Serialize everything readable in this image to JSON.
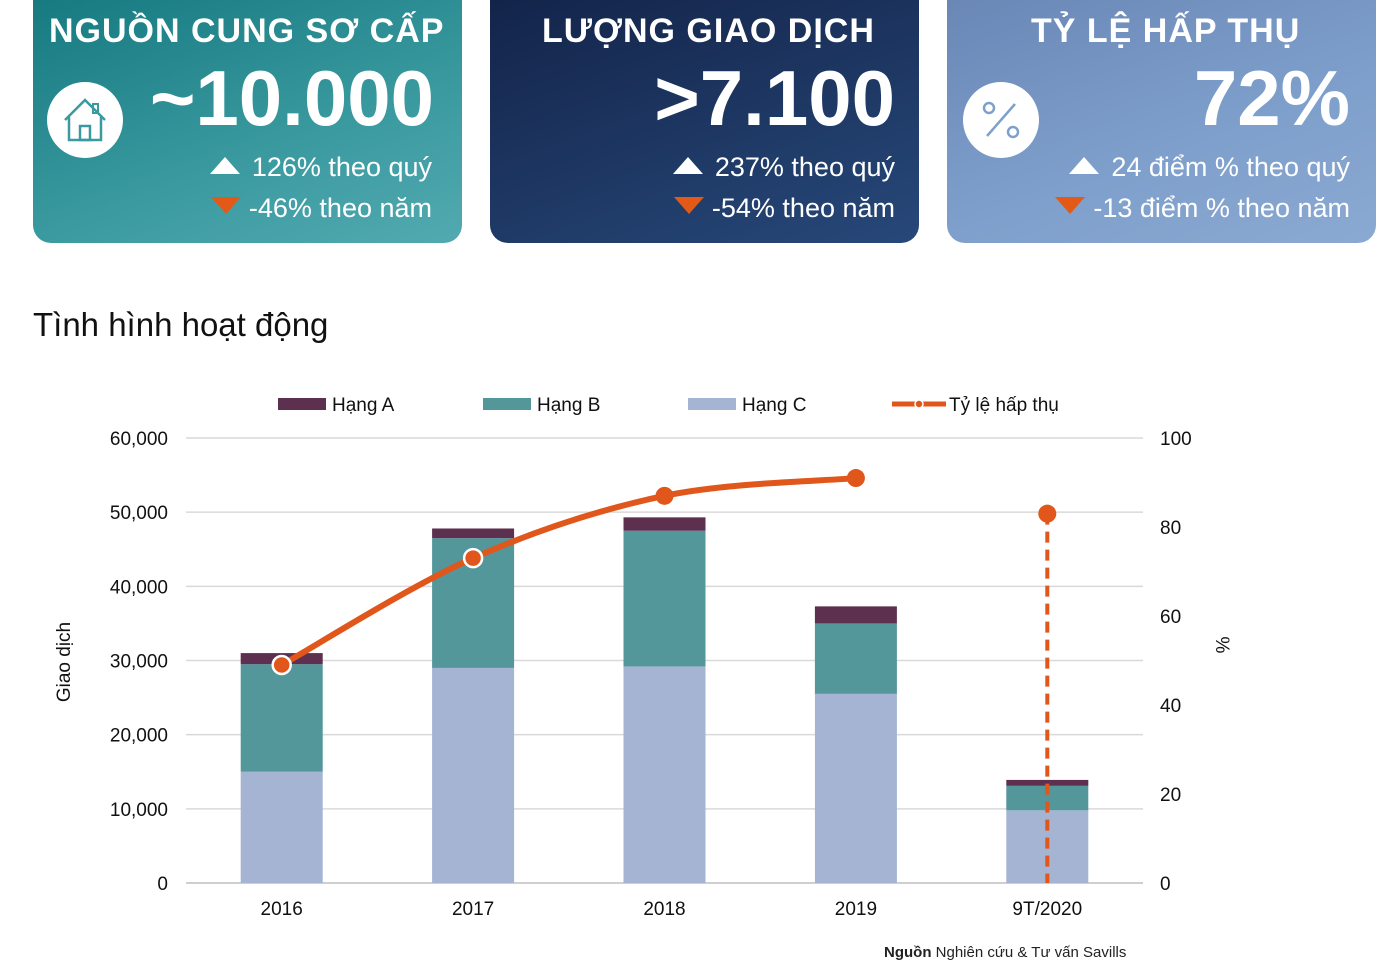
{
  "cards": [
    {
      "title": "NGUỒN CUNG SƠ CẤP",
      "value": "~10.000",
      "row1": "126% theo quý",
      "row2": "-46% theo năm",
      "icon": "house-icon"
    },
    {
      "title": "LƯỢNG GIAO DỊCH",
      "value": ">7.100",
      "row1": "237% theo quý",
      "row2": "-54% theo năm"
    },
    {
      "title": "TỶ LỆ HẤP THỤ",
      "value": "72%",
      "row1": "24 điểm % theo quý",
      "row2": "-13 điểm % theo năm",
      "icon": "percent-icon"
    }
  ],
  "section_title": "Tình hình hoạt động",
  "source": {
    "label": "Nguồn",
    "text": "Nghiên cứu & Tư vấn Savills"
  },
  "colors": {
    "hang_a": "#5e3050",
    "hang_b": "#53979b",
    "hang_c": "#a4b4d2",
    "absorption": "#e0561b",
    "grid": "#d9d9d9"
  },
  "chart_data": {
    "type": "bar",
    "stacked": true,
    "categories": [
      "2016",
      "2017",
      "2018",
      "2019",
      "9T/2020"
    ],
    "series": [
      {
        "name": "Hạng C",
        "values": [
          15000,
          29000,
          29200,
          25500,
          9800
        ]
      },
      {
        "name": "Hạng B",
        "values": [
          14500,
          17500,
          18300,
          9500,
          3300
        ]
      },
      {
        "name": "Hạng A",
        "values": [
          1500,
          1300,
          1800,
          2300,
          800
        ]
      }
    ],
    "line_series": {
      "name": "Tỷ lệ hấp thụ",
      "axis": "right",
      "values": [
        49,
        73,
        87,
        91,
        83
      ]
    },
    "ylabel": "Giao dịch",
    "y2label": "%",
    "ylim": [
      0,
      60000
    ],
    "y2lim": [
      0,
      100
    ],
    "yticks": [
      "0",
      "10,000",
      "20,000",
      "30,000",
      "40,000",
      "50,000",
      "60,000"
    ],
    "y2ticks": [
      "0",
      "20",
      "40",
      "60",
      "80",
      "100"
    ],
    "legend": [
      "Hạng A",
      "Hạng B",
      "Hạng C",
      "Tỷ lệ hấp thụ"
    ],
    "legend_position": "top",
    "grid": true
  }
}
